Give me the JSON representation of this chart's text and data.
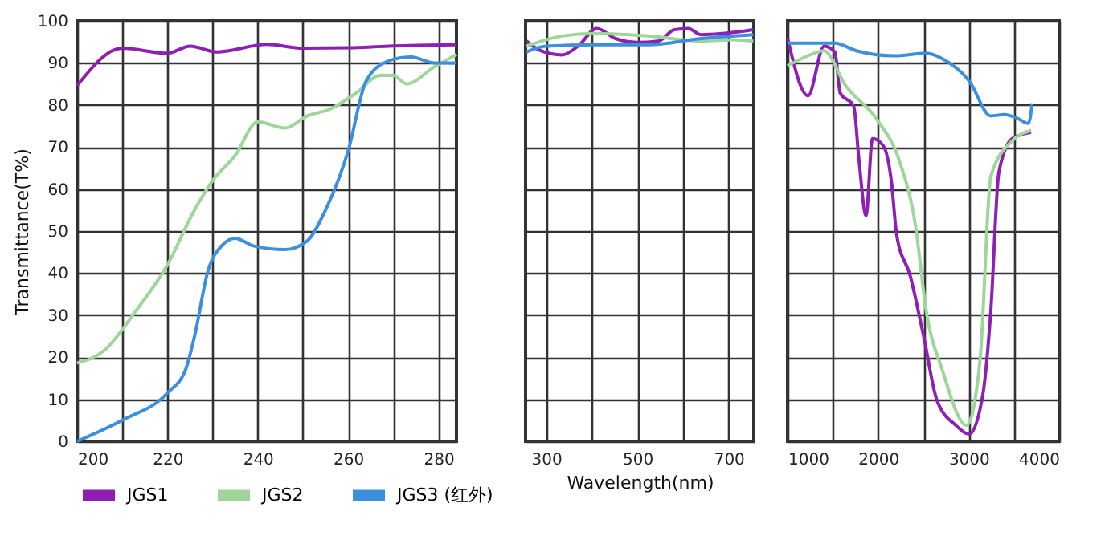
{
  "chart_data": [
    {
      "type": "line",
      "ylabel": "Transmittance(T%)",
      "xlim": [
        200,
        284
      ],
      "xticks": [
        200,
        {
          "value": 210,
          "label": null
        },
        220,
        {
          "value": 230,
          "label": null
        },
        240,
        {
          "value": 250,
          "label": null
        },
        260,
        {
          "value": 270,
          "label": null
        },
        280
      ],
      "ylim": [
        0,
        100
      ],
      "yticks": [
        0,
        10,
        20,
        30,
        40,
        50,
        60,
        70,
        80,
        90,
        100
      ],
      "grid": true,
      "legend": "bottom",
      "series": [
        {
          "name": "JGS1",
          "color": "#8e1eb4",
          "x": [
            200,
            210,
            220,
            225,
            231,
            242,
            250,
            260,
            269,
            284
          ],
          "values": [
            84.6,
            93.5,
            92.3,
            94,
            92.6,
            94.4,
            93.5,
            93.6,
            94,
            94.3
          ]
        },
        {
          "name": "JGS2",
          "color": "#9ed69a",
          "x": [
            200,
            206,
            213,
            220,
            226,
            230,
            235,
            240,
            246,
            251,
            256,
            262,
            267,
            270,
            273,
            279,
            284
          ],
          "values": [
            18.6,
            21.6,
            31,
            42,
            55,
            62,
            68,
            76,
            74.5,
            77.4,
            79,
            83,
            87,
            87,
            85,
            89,
            92
          ]
        },
        {
          "name": "JGS3 (红外)",
          "color": "#3c8fdc",
          "x": [
            200,
            210,
            220,
            224,
            226,
            229,
            232,
            235,
            239,
            246,
            251,
            255,
            260,
            264,
            269,
            274,
            279,
            284
          ],
          "values": [
            0,
            5,
            11.5,
            17,
            25,
            40.6,
            46.5,
            48.3,
            46.5,
            45.6,
            47.7,
            55,
            69,
            85.7,
            90.5,
            91.4,
            90,
            90
          ]
        }
      ]
    },
    {
      "type": "line",
      "xlabel": "Wavelength(nm)",
      "xlim": [
        255,
        755
      ],
      "xticks": [
        300,
        {
          "value": 400,
          "label": null
        },
        500,
        {
          "value": 600,
          "label": null
        },
        700
      ],
      "ylim": [
        0,
        100
      ],
      "yticks": [
        0,
        10,
        20,
        30,
        40,
        50,
        60,
        70,
        80,
        90,
        100
      ],
      "grid": true,
      "tick_labels": "x",
      "series": [
        {
          "color": "#8e1eb4",
          "x": [
            257,
            288,
            335,
            370,
            411,
            452,
            499,
            546,
            581,
            611,
            640,
            687,
            754
          ],
          "values": [
            95.2,
            92.9,
            91.9,
            94,
            98.2,
            95.8,
            94.9,
            95.2,
            97.9,
            98.2,
            96.7,
            97,
            97.9
          ]
        },
        {
          "color": "#9ed69a",
          "x": [
            257,
            335,
            406,
            523,
            640,
            710,
            754
          ],
          "values": [
            94,
            96.4,
            97,
            96.4,
            95.2,
            95.5,
            95.2
          ]
        },
        {
          "color": "#3c8fdc",
          "x": [
            257,
            300,
            406,
            523,
            640,
            754
          ],
          "values": [
            92.6,
            94,
            94.3,
            94.3,
            95.8,
            96.7
          ]
        }
      ]
    },
    {
      "type": "line",
      "xlim": [
        1000,
        4000
      ],
      "xticks": [
        1000,
        {
          "value": 1500,
          "label": null
        },
        2000,
        {
          "value": 2500,
          "label": null
        },
        3000,
        {
          "value": 3500,
          "label": null
        },
        4000
      ],
      "ylim": [
        0,
        100
      ],
      "yticks": [
        0,
        10,
        20,
        30,
        40,
        50,
        60,
        70,
        80,
        90,
        100
      ],
      "grid": true,
      "tick_labels": "x",
      "series": [
        {
          "color": "#8e1eb4",
          "x": [
            1000,
            1226,
            1404,
            1523,
            1582,
            1730,
            1790,
            1867,
            1938,
            2057,
            2146,
            2206,
            2354,
            2503,
            2651,
            2859,
            3007,
            3156,
            3245,
            3334,
            3482,
            3690
          ],
          "values": [
            95.9,
            82.2,
            94,
            92.6,
            82.8,
            79.8,
            66.7,
            53.7,
            72,
            70.3,
            62,
            49,
            39.4,
            25,
            9.7,
            3.8,
            1.7,
            11,
            31,
            64,
            72,
            73.5
          ]
        },
        {
          "color": "#9ed69a",
          "x": [
            1000,
            1226,
            1404,
            1641,
            2000,
            2235,
            2413,
            2532,
            2710,
            2978,
            3126,
            3245,
            3482,
            3690
          ],
          "values": [
            89.3,
            91.7,
            92.9,
            84.6,
            76.2,
            66.7,
            51.3,
            31,
            16.9,
            3.8,
            19.2,
            63,
            71.5,
            73.9
          ]
        },
        {
          "color": "#3c8fdc",
          "x": [
            1000,
            1523,
            1760,
            2176,
            2532,
            2710,
            3007,
            3245,
            3393,
            3541,
            3660,
            3702
          ],
          "values": [
            94.7,
            94.7,
            92.9,
            91.7,
            92.3,
            91,
            85.7,
            77.4,
            77.7,
            76.8,
            75.6,
            80.4
          ]
        }
      ]
    }
  ]
}
